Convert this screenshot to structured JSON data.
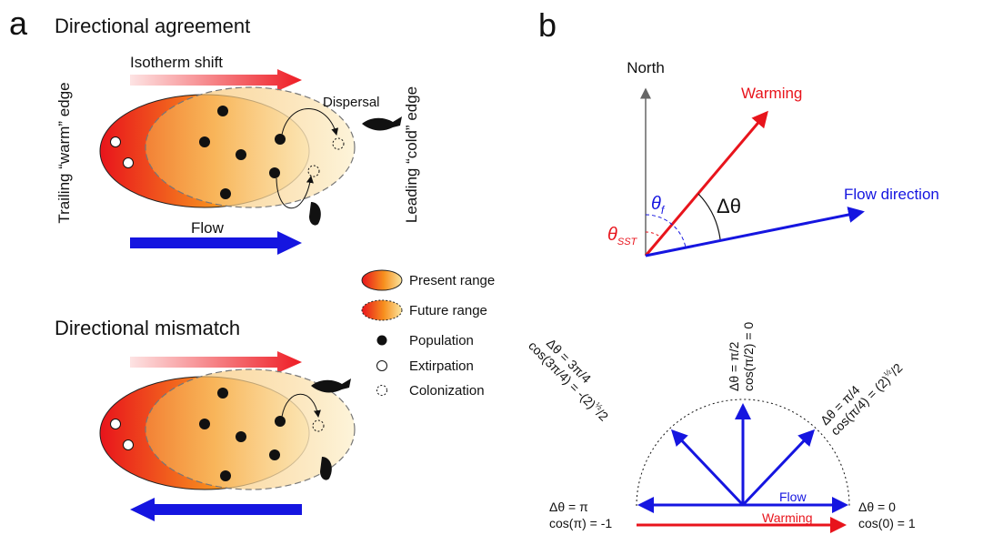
{
  "panel_a": {
    "letter": "a",
    "top": {
      "title": "Directional agreement",
      "isotherm_label": "Isotherm shift",
      "dispersal_label": "Dispersal",
      "flow_label": "Flow"
    },
    "trailing_edge": "Trailing “warm” edge",
    "leading_edge": "Leading “cold” edge",
    "legend": [
      "Present range",
      "Future range",
      "Population",
      "Extirpation",
      "Colonization"
    ],
    "bottom": {
      "title": "Directional mismatch"
    }
  },
  "panel_b": {
    "letter": "b",
    "north": "North",
    "warming": "Warming",
    "flow_direction": "Flow direction",
    "delta_theta": "Δθ",
    "theta_f": {
      "symbol": "θ",
      "subscript": "f"
    },
    "theta_sst": {
      "symbol": "θ",
      "subscript": "SST"
    },
    "cases": [
      {
        "angle": "Δθ = 3π/4",
        "cosine": {
          "text": "cos(3π/4) = -(2)",
          "sup": "½",
          "tail": "/2"
        }
      },
      {
        "angle": "Δθ = π/2",
        "cosine": {
          "text": "cos(π/2) = 0"
        }
      },
      {
        "angle": "Δθ = π/4",
        "cosine": {
          "text": "cos(π/4) = (2)",
          "sup": "½",
          "tail": "/2"
        }
      },
      {
        "angle": "Δθ = π",
        "cosine": {
          "text": "cos(π) = -1"
        }
      },
      {
        "angle": "Δθ = 0",
        "cosine": {
          "text": "cos(0) = 1"
        }
      }
    ],
    "flow": "Flow",
    "warming_bottom": "Warming"
  }
}
